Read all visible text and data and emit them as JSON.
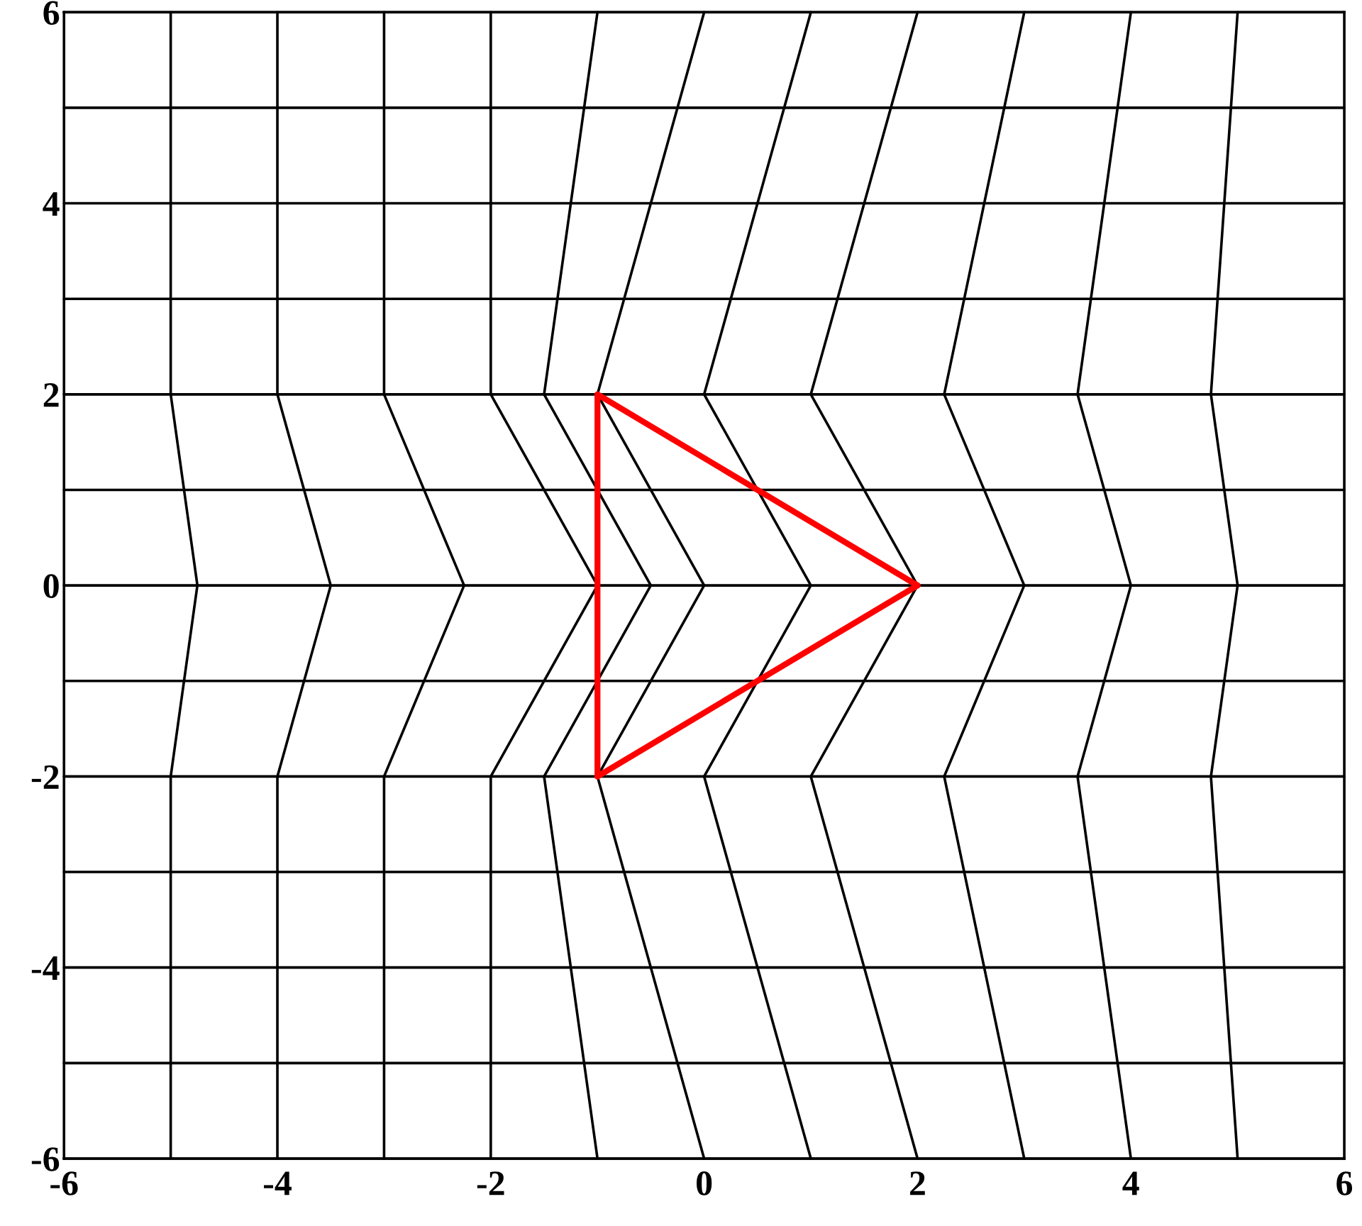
{
  "chart_data": {
    "type": "line",
    "xlim": [
      -6,
      6
    ],
    "ylim": [
      -6,
      6
    ],
    "xticks": [
      -6,
      -4,
      -2,
      0,
      2,
      4,
      6
    ],
    "yticks": [
      -6,
      -4,
      -2,
      0,
      2,
      4,
      6
    ],
    "grid": false,
    "marker": "none",
    "line_style": "solid",
    "series": [
      {
        "color": "#000000",
        "x": [
          -6,
          6
        ],
        "values": [
          -6,
          -6
        ]
      },
      {
        "color": "#000000",
        "x": [
          -6,
          6
        ],
        "values": [
          -5,
          -5
        ]
      },
      {
        "color": "#000000",
        "x": [
          -6,
          6
        ],
        "values": [
          -4,
          -4
        ]
      },
      {
        "color": "#000000",
        "x": [
          -6,
          6
        ],
        "values": [
          -3,
          -3
        ]
      },
      {
        "color": "#000000",
        "x": [
          -6,
          6
        ],
        "values": [
          -2,
          -2
        ]
      },
      {
        "color": "#000000",
        "x": [
          -6,
          6
        ],
        "values": [
          -1,
          -1
        ]
      },
      {
        "color": "#000000",
        "x": [
          -6,
          6
        ],
        "values": [
          0,
          0
        ]
      },
      {
        "color": "#000000",
        "x": [
          -6,
          6
        ],
        "values": [
          1,
          1
        ]
      },
      {
        "color": "#000000",
        "x": [
          -6,
          6
        ],
        "values": [
          2,
          2
        ]
      },
      {
        "color": "#000000",
        "x": [
          -6,
          6
        ],
        "values": [
          3,
          3
        ]
      },
      {
        "color": "#000000",
        "x": [
          -6,
          6
        ],
        "values": [
          4,
          4
        ]
      },
      {
        "color": "#000000",
        "x": [
          -6,
          6
        ],
        "values": [
          5,
          5
        ]
      },
      {
        "color": "#000000",
        "x": [
          -6,
          6
        ],
        "values": [
          6,
          6
        ]
      },
      {
        "color": "#000000",
        "x": [
          -5,
          -5,
          -4.75,
          -5,
          -5
        ],
        "values": [
          -6,
          -2,
          0,
          2,
          6
        ]
      },
      {
        "color": "#000000",
        "x": [
          -4,
          -4,
          -3.5,
          -4,
          -4
        ],
        "values": [
          -6,
          -2,
          0,
          2,
          6
        ]
      },
      {
        "color": "#000000",
        "x": [
          -3,
          -3,
          -2.25,
          -3,
          -3
        ],
        "values": [
          -6,
          -2,
          0,
          2,
          6
        ]
      },
      {
        "color": "#000000",
        "x": [
          -2,
          -2,
          -1,
          -2,
          -2
        ],
        "values": [
          -6,
          -2,
          0,
          2,
          6
        ]
      },
      {
        "color": "#000000",
        "x": [
          -1,
          -1.5,
          -0.5,
          -1.5,
          -1
        ],
        "values": [
          -6,
          -2,
          0,
          2,
          6
        ]
      },
      {
        "color": "#000000",
        "x": [
          0,
          -1,
          0,
          -1,
          0
        ],
        "values": [
          -6,
          -2,
          0,
          2,
          6
        ]
      },
      {
        "color": "#000000",
        "x": [
          1,
          0,
          1,
          0,
          1
        ],
        "values": [
          -6,
          -2,
          0,
          2,
          6
        ]
      },
      {
        "color": "#000000",
        "x": [
          2,
          1,
          2,
          1,
          2
        ],
        "values": [
          -6,
          -2,
          0,
          2,
          6
        ]
      },
      {
        "color": "#000000",
        "x": [
          3,
          2.25,
          3,
          2.25,
          3
        ],
        "values": [
          -6,
          -2,
          0,
          2,
          6
        ]
      },
      {
        "color": "#000000",
        "x": [
          4,
          3.5,
          4,
          3.5,
          4
        ],
        "values": [
          -6,
          -2,
          0,
          2,
          6
        ]
      },
      {
        "color": "#000000",
        "x": [
          5,
          4.75,
          5,
          4.75,
          5
        ],
        "values": [
          -6,
          -2,
          0,
          2,
          6
        ]
      },
      {
        "color": "#ff0000",
        "x": [
          -1,
          2
        ],
        "values": [
          2,
          0
        ]
      },
      {
        "color": "#ff0000",
        "x": [
          2,
          -1
        ],
        "values": [
          0,
          -2
        ]
      },
      {
        "color": "#ff0000",
        "x": [
          -1,
          -1
        ],
        "values": [
          -2,
          2
        ]
      }
    ]
  }
}
